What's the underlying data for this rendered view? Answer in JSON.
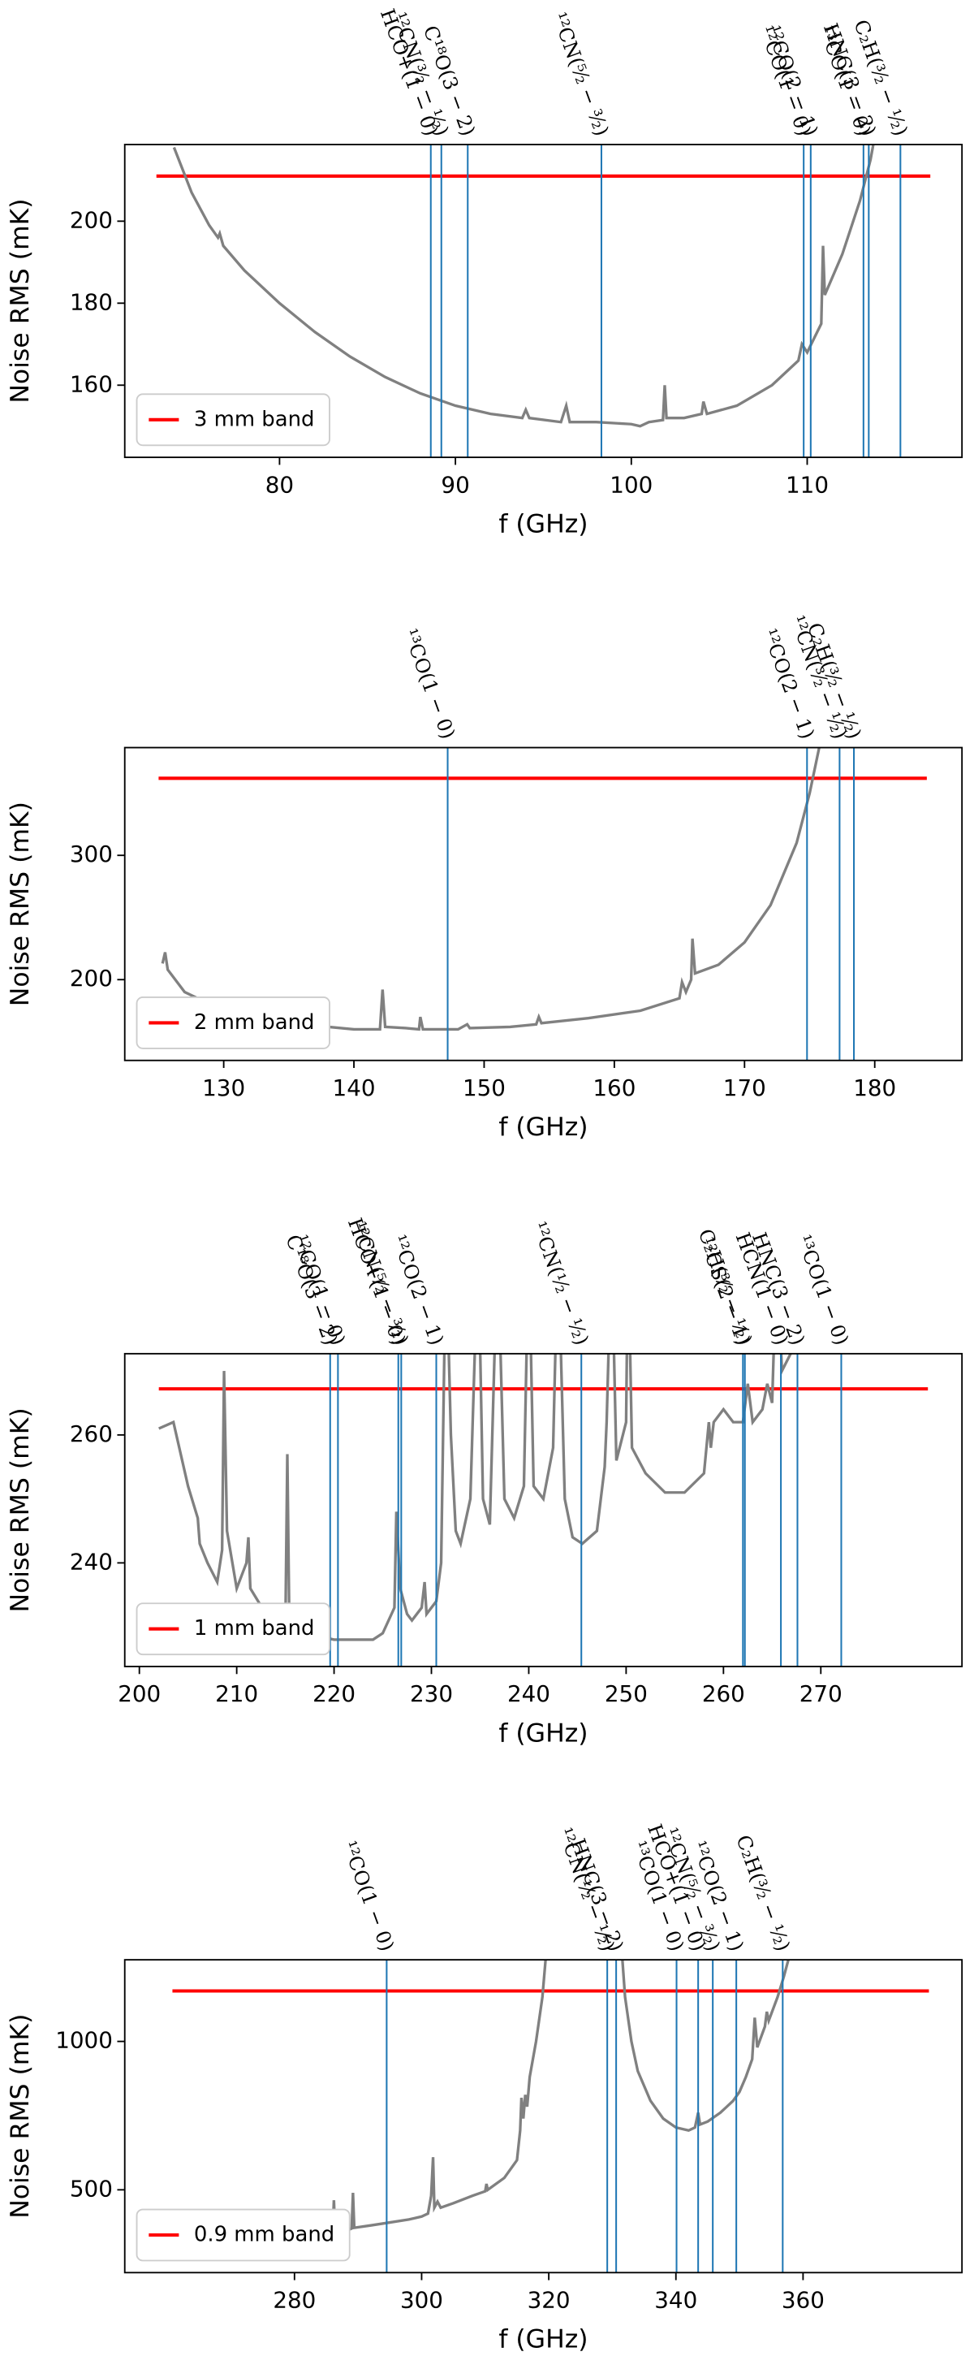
{
  "chart_data": [
    {
      "type": "line",
      "xlabel": "f (GHz)",
      "ylabel": "Noise RMS (mK)",
      "legend": "lower left",
      "xlim": [
        71.2,
        118.8
      ],
      "ylim": [
        142.4,
        218.7
      ],
      "xticks": [
        80,
        90,
        100,
        110
      ],
      "yticks": [
        160,
        180,
        200
      ],
      "series": [
        {
          "name": "3 mm band",
          "color": "#ff0000",
          "x": [
            73,
            117
          ],
          "values": [
            211,
            211
          ]
        },
        {
          "color": "#808080",
          "x": [
            74.0,
            75,
            76,
            76.5,
            76.6,
            76.8,
            78,
            80,
            82,
            84,
            86,
            88,
            90,
            92,
            93.8,
            94,
            94.2,
            96,
            96.3,
            96.5,
            98,
            100,
            100.5,
            101,
            101.8,
            101.9,
            102,
            103,
            104,
            104.1,
            104.3,
            106,
            108,
            109.5,
            109.7,
            110,
            110.8,
            110.9,
            111,
            112,
            113,
            113.6,
            113.9
          ],
          "values": [
            218,
            207,
            199,
            196,
            197,
            194,
            188,
            180,
            173,
            167,
            162,
            158,
            155,
            153,
            152,
            154,
            152,
            151,
            155,
            151,
            151,
            150.5,
            150,
            151,
            151.5,
            160,
            152,
            152,
            153,
            156,
            153,
            155,
            160,
            166,
            170,
            168,
            175,
            194,
            182,
            192,
            205,
            215,
            222
          ]
        }
      ],
      "lines_color": "#1f77b4",
      "lines": [
        {
          "label": "HCO+(1 − 0)",
          "x": 88.6
        },
        {
          "label": "¹²CN(³⁄₂ − ¹⁄₂)",
          "x": 89.2
        },
        {
          "label": "C¹⁸O(3 − 2)",
          "x": 90.7
        },
        {
          "label": "¹²CN(⁵⁄₂ − ³⁄₂)",
          "x": 98.3
        },
        {
          "label": "¹²CO(1 − 0)",
          "x": 109.8
        },
        {
          "label": "¹²CO(2 − 1)",
          "x": 110.2
        },
        {
          "label": "¹³CO(1 − 0)",
          "x": 113.2
        },
        {
          "label": "HNC(3 − 2)",
          "x": 113.5
        },
        {
          "label": "C₂H(³⁄₂ − ¹⁄₂)",
          "x": 115.3
        }
      ]
    },
    {
      "type": "line",
      "xlabel": "f (GHz)",
      "ylabel": "Noise RMS (mK)",
      "legend": "lower left",
      "xlim": [
        122.4,
        186.7
      ],
      "ylim": [
        135,
        386.7
      ],
      "xticks": [
        130,
        140,
        150,
        160,
        170,
        180
      ],
      "yticks": [
        200,
        300
      ],
      "series": [
        {
          "name": "2 mm band",
          "color": "#ff0000",
          "x": [
            125,
            184
          ],
          "values": [
            362,
            362
          ]
        },
        {
          "color": "#808080",
          "x": [
            125.3,
            125.5,
            125.7,
            127,
            130,
            135,
            140,
            142,
            142.2,
            142.4,
            144,
            145,
            145.1,
            145.3,
            148,
            148.7,
            148.9,
            152,
            154,
            154.2,
            154.4,
            158,
            162,
            165,
            165.2,
            165.5,
            165.9,
            166,
            166.2,
            168,
            170,
            172,
            174,
            175,
            176
          ],
          "values": [
            213,
            222,
            208,
            190,
            175,
            165,
            160,
            160,
            192,
            162,
            161,
            160,
            170,
            160,
            160,
            164,
            161,
            162,
            164,
            170,
            165,
            169,
            175,
            185,
            198,
            190,
            200,
            233,
            205,
            212,
            230,
            260,
            310,
            350,
            400
          ]
        }
      ],
      "lines_color": "#1f77b4",
      "lines": [
        {
          "label": "¹³CO(1 − 0)",
          "x": 147.2
        },
        {
          "label": "¹²CO(2 − 1)",
          "x": 174.8
        },
        {
          "label": "¹²CN(³⁄₂ − ¹⁄₂)",
          "x": 177.3
        },
        {
          "label": "C₂H(³⁄₂ − ¹⁄₂)",
          "x": 178.4
        }
      ]
    },
    {
      "type": "line",
      "xlabel": "f (GHz)",
      "ylabel": "Noise RMS (mK)",
      "legend": "lower left",
      "xlim": [
        198.5,
        284.5
      ],
      "ylim": [
        223.8,
        272.7
      ],
      "xticks": [
        200,
        210,
        220,
        230,
        240,
        250,
        260,
        270
      ],
      "yticks": [
        240,
        260
      ],
      "series": [
        {
          "name": "1 mm band",
          "color": "#ff0000",
          "x": [
            202,
            281
          ],
          "values": [
            267.2,
            267.2
          ]
        },
        {
          "color": "#808080",
          "x": [
            202,
            203.5,
            205,
            206,
            206.2,
            207,
            208,
            208.5,
            208.7,
            209,
            210,
            211,
            211.2,
            211.4,
            213,
            215,
            215.2,
            215.4,
            217,
            220,
            224,
            225,
            226.2,
            226.4,
            226.8,
            227.5,
            228,
            229,
            229.3,
            229.5,
            230.5,
            231,
            231.5,
            232,
            232.5,
            233,
            234,
            234.8,
            235.3,
            236,
            236.8,
            237.5,
            238.5,
            239.5,
            240,
            240.5,
            241.5,
            242.5,
            243,
            243.7,
            244.5,
            245.5,
            247,
            247.8,
            248,
            248.5,
            249,
            250,
            250.2,
            250.6,
            252,
            254,
            256,
            258,
            258.5,
            258.7,
            259,
            260,
            261,
            262,
            262.5,
            263,
            264,
            264.5,
            265,
            265.5,
            266,
            267,
            268
          ],
          "values": [
            261,
            262,
            252,
            247,
            243,
            240,
            237,
            242,
            270,
            245,
            236,
            240,
            244,
            236,
            232,
            230,
            257,
            231,
            229,
            228,
            228,
            229,
            233,
            248,
            236,
            232,
            231,
            233,
            237,
            232,
            234,
            240,
            290,
            260,
            245,
            243,
            250,
            290,
            250,
            246,
            290,
            250,
            247,
            252,
            290,
            252,
            250,
            258,
            290,
            250,
            244,
            243,
            245,
            255,
            262,
            290,
            256,
            262,
            290,
            258,
            254,
            251,
            251,
            254,
            262,
            258,
            262,
            264,
            262,
            262,
            268,
            262,
            264,
            268,
            265,
            290,
            270,
            273,
            290
          ]
        }
      ],
      "lines_color": "#1f77b4",
      "lines": [
        {
          "label": "C¹⁸O(3 − 2)",
          "x": 219.6
        },
        {
          "label": "¹²CO(1 − 0)",
          "x": 220.4
        },
        {
          "label": "HCO+(1 − 0)",
          "x": 226.6
        },
        {
          "label": "¹²CN(⁵⁄₂ − ³⁄₂)",
          "x": 226.9
        },
        {
          "label": "¹²CO(2 − 1)",
          "x": 230.5
        },
        {
          "label": "¹²CN(¹⁄₂ − ¹⁄₂)",
          "x": 245.4
        },
        {
          "label": "¹²CS(2 − 1)",
          "x": 262.0
        },
        {
          "label": "C₂H(³⁄₂ − ¹⁄₂)",
          "x": 262.2
        },
        {
          "label": "HCN(1 − 0)",
          "x": 265.9
        },
        {
          "label": "HNC(3 − 2)",
          "x": 267.6
        },
        {
          "label": "¹³CO(1 − 0)",
          "x": 272.1
        }
      ]
    },
    {
      "type": "line",
      "xlabel": "f (GHz)",
      "ylabel": "Noise RMS (mK)",
      "legend": "lower left",
      "xlim": [
        253.3,
        385
      ],
      "ylim": [
        221,
        1275
      ],
      "xticks": [
        280,
        300,
        320,
        340,
        360
      ],
      "yticks": [
        500,
        1000
      ],
      "series": [
        {
          "name": "0.9 mm band",
          "color": "#ff0000",
          "x": [
            260.8,
            379.8
          ],
          "values": [
            1170,
            1170
          ]
        },
        {
          "color": "#808080",
          "x": [
            277,
            280,
            285,
            286,
            286.2,
            286.4,
            288,
            289,
            289.2,
            289.4,
            292,
            295,
            298,
            300,
            301,
            301.5,
            301.8,
            302,
            302.5,
            303,
            305,
            308,
            310,
            310.2,
            310.4,
            313,
            315,
            315.5,
            315.7,
            316,
            316.3,
            316.6,
            317,
            318,
            319,
            319.6,
            325,
            331.5,
            332,
            333,
            334,
            336,
            338,
            340,
            342,
            343,
            343.5,
            343.8,
            345,
            347,
            348,
            349,
            350,
            351,
            352,
            352.4,
            352.8,
            354,
            354.3,
            354.6,
            356,
            357,
            358
          ],
          "values": [
            360,
            355,
            345,
            350,
            465,
            355,
            360,
            370,
            490,
            372,
            380,
            390,
            400,
            410,
            420,
            480,
            610,
            440,
            460,
            440,
            455,
            480,
            495,
            520,
            500,
            540,
            600,
            700,
            810,
            740,
            820,
            780,
            880,
            1000,
            1150,
            1300,
            null,
            1300,
            1150,
            1000,
            900,
            800,
            740,
            710,
            700,
            710,
            760,
            720,
            730,
            760,
            780,
            800,
            830,
            880,
            940,
            1080,
            980,
            1050,
            1100,
            1070,
            1150,
            1220,
            1300
          ]
        }
      ],
      "lines_color": "#1f77b4",
      "lines": [
        {
          "label": "¹²CO(1 − 0)",
          "x": 294.5
        },
        {
          "label": "¹²CN(¹⁄₂ − ¹⁄₂)",
          "x": 329.2
        },
        {
          "label": "HNC(3 − 2)",
          "x": 330.6
        },
        {
          "label": "¹³CO(1 − 0)",
          "x": 340.1
        },
        {
          "label": "HCO+(1 − 0)",
          "x": 343.5
        },
        {
          "label": "¹²CN(⁵⁄₂ − ³⁄₂)",
          "x": 345.8
        },
        {
          "label": "¹²CO(2 − 1)",
          "x": 349.5
        },
        {
          "label": "C₂H(³⁄₂ − ¹⁄₂)",
          "x": 356.8
        }
      ]
    }
  ]
}
